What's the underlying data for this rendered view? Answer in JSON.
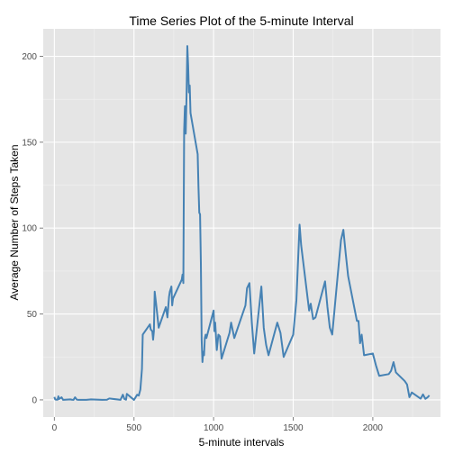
{
  "chart_data": {
    "type": "line",
    "title": "Time Series Plot of the 5-minute Interval",
    "xlabel": "5-minute intervals",
    "ylabel": "Average Number of Steps Taken",
    "xlim": [
      -70,
      2425
    ],
    "ylim": [
      -10,
      216
    ],
    "x_ticks": [
      0,
      500,
      1000,
      1500,
      2000
    ],
    "x_tick_labels": [
      "0",
      "500",
      "1000",
      "1500",
      "2000"
    ],
    "y_ticks": [
      0,
      50,
      100,
      150,
      200
    ],
    "y_tick_labels": [
      "0",
      "50",
      "100",
      "150",
      "200"
    ],
    "grid": true,
    "line_color": "#4682B4",
    "panel_color": "#E5E5E5",
    "grid_color": "#FFFFFF",
    "series": [
      {
        "x": [
          0,
          5,
          10,
          15,
          20,
          25,
          30,
          45,
          55,
          100,
          110,
          120,
          130,
          135,
          140,
          150,
          200,
          230,
          300,
          330,
          345,
          400,
          415,
          430,
          440,
          450,
          455,
          500,
          510,
          520,
          530,
          540,
          550,
          555,
          600,
          605,
          615,
          620,
          625,
          630,
          640,
          655,
          700,
          710,
          720,
          725,
          735,
          740,
          745,
          800,
          805,
          810,
          815,
          820,
          825,
          830,
          835,
          840,
          845,
          850,
          855,
          900,
          905,
          910,
          915,
          920,
          925,
          930,
          935,
          940,
          945,
          950,
          955,
          1000,
          1005,
          1010,
          1020,
          1030,
          1040,
          1050,
          1100,
          1110,
          1130,
          1200,
          1210,
          1225,
          1240,
          1255,
          1300,
          1315,
          1330,
          1345,
          1400,
          1420,
          1440,
          1500,
          1520,
          1540,
          1550,
          1600,
          1610,
          1625,
          1640,
          1700,
          1715,
          1730,
          1745,
          1800,
          1815,
          1830,
          1845,
          1900,
          1910,
          1920,
          1930,
          1945,
          2000,
          2020,
          2040,
          2100,
          2115,
          2130,
          2145,
          2200,
          2215,
          2230,
          2245,
          2300,
          2315,
          2330,
          2345,
          2355
        ],
        "y": [
          1.7,
          0.3,
          0.1,
          0.2,
          0.1,
          2.1,
          0.5,
          1.5,
          0.0,
          0.3,
          0.1,
          0.0,
          1.5,
          0.9,
          0.2,
          0.0,
          0.0,
          0.3,
          0.0,
          0.1,
          0.8,
          0.2,
          0.0,
          3.0,
          0.5,
          0.1,
          3.5,
          0.0,
          1.5,
          3.0,
          2.5,
          6.0,
          18.0,
          38.0,
          44.0,
          41.0,
          40.0,
          35.0,
          40.0,
          63.0,
          55.0,
          42.0,
          54.0,
          48.0,
          60.0,
          63.0,
          66.0,
          55.0,
          59.0,
          70.0,
          73.0,
          68.0,
          157.0,
          171.0,
          155.0,
          177.0,
          206.0,
          195.0,
          179.0,
          183.0,
          167.0,
          143.0,
          124.0,
          109.0,
          108.0,
          80.0,
          35.0,
          22.0,
          28.0,
          26.0,
          36.0,
          38.0,
          36.0,
          52.0,
          40.0,
          45.0,
          29.0,
          38.0,
          37.0,
          24.0,
          39.0,
          45.0,
          36.0,
          55.0,
          65.0,
          68.0,
          45.0,
          27.0,
          66.0,
          42.0,
          32.0,
          26.0,
          45.0,
          39.0,
          25.0,
          38.0,
          58.0,
          102.0,
          90.0,
          52.0,
          56.0,
          47.0,
          48.0,
          69.0,
          54.0,
          42.0,
          38.0,
          93.0,
          99.0,
          85.0,
          72.0,
          46.0,
          46.0,
          33.0,
          38.0,
          26.0,
          27.0,
          20.0,
          14.0,
          15.0,
          17.0,
          22.0,
          16.0,
          11.0,
          9.0,
          1.6,
          4.3,
          0.7,
          3.2,
          0.6,
          1.6,
          2.6
        ]
      }
    ]
  }
}
